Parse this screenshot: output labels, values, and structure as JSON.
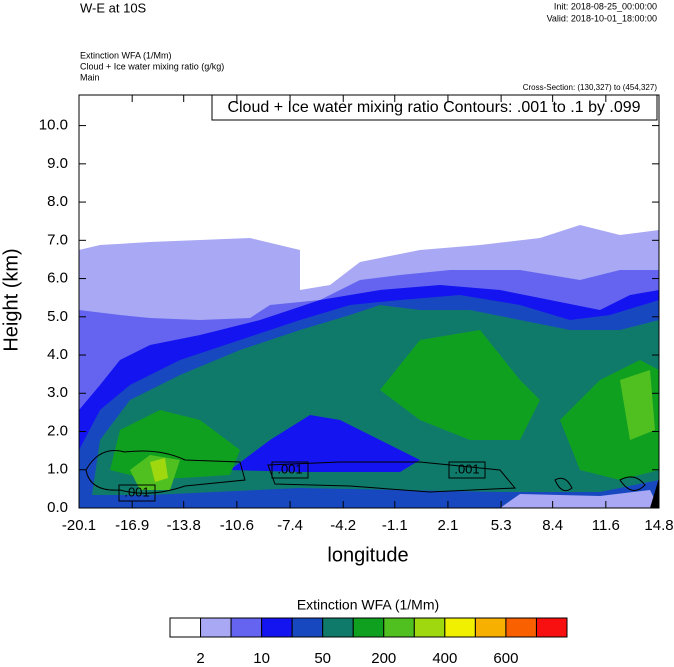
{
  "chart_data": {
    "type": "contour",
    "title": "W-E at 10S",
    "init": "Init: 2018-08-25_00:00:00",
    "valid": "Valid: 2018-10-01_18:00:00",
    "subtitles": [
      "Extinction WFA   (1/Mm)",
      "Cloud + Ice water mixing ratio   (g/kg)",
      "Main"
    ],
    "cross_section": "Cross-Section: (130,327) to (454,327)",
    "contour_info": "Cloud + Ice water mixing ratio Contours: .001 to .1 by .099",
    "contour_labels": [
      ".001",
      ".001",
      ".001"
    ],
    "xlabel": "longitude",
    "ylabel": "Height (km)",
    "xlim": [
      -20.1,
      14.8
    ],
    "xticks": [
      -20.1,
      -16.9,
      -13.8,
      -10.6,
      -7.4,
      -4.2,
      -1.1,
      2.1,
      5.3,
      8.4,
      11.6,
      14.8
    ],
    "ylim": [
      0,
      10.8
    ],
    "yticks": [
      {
        "value": 0,
        "label": "0.0"
      },
      {
        "value": 1,
        "label": "1.0"
      },
      {
        "value": 2,
        "label": "2.0"
      },
      {
        "value": 3,
        "label": "3.0"
      },
      {
        "value": 4,
        "label": "4.0"
      },
      {
        "value": 5,
        "label": "5.0"
      },
      {
        "value": 6,
        "label": "6.0"
      },
      {
        "value": 7,
        "label": "7.0"
      },
      {
        "value": 8,
        "label": "8.0"
      },
      {
        "value": 9,
        "label": "9.0"
      },
      {
        "value": 10,
        "label": "10.0"
      }
    ],
    "colorbar": {
      "title": "Extinction WFA  (1/Mm)",
      "colors": [
        "#ffffff",
        "#a8a8f4",
        "#6464f0",
        "#1414f0",
        "#1848c0",
        "#107a6a",
        "#10a020",
        "#50c020",
        "#a0d810",
        "#f0f000",
        "#f8b000",
        "#f86000",
        "#f81010"
      ],
      "labels": [
        2,
        10,
        50,
        200,
        400,
        600
      ]
    }
  }
}
